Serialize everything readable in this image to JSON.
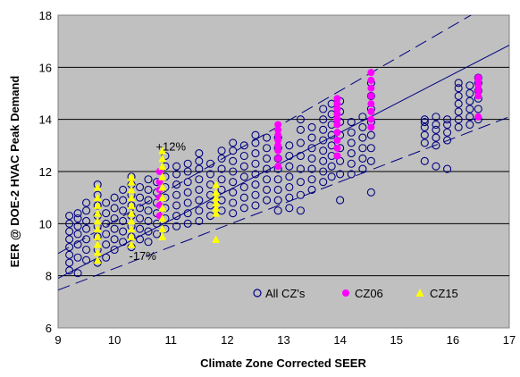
{
  "chart_data": {
    "type": "scatter",
    "title": "",
    "xlabel": "Climate Zone Corrected SEER",
    "ylabel": "EER @ DOE-2 HVAC Peak Demand",
    "xlim": [
      9,
      17
    ],
    "ylim": [
      6,
      18
    ],
    "xticks": [
      "9",
      "10",
      "11",
      "12",
      "13",
      "14",
      "15",
      "16",
      "17"
    ],
    "yticks": [
      "6",
      "8",
      "10",
      "12",
      "14",
      "16",
      "18"
    ],
    "grid": "horizontal",
    "plot_background": "#c0c0c0",
    "legend_position": "bottom-right-inside",
    "annotations": [
      {
        "text": "+12%",
        "x": 11.0,
        "y": 12.8
      },
      {
        "text": "-17%",
        "x": 10.5,
        "y": 8.6
      }
    ],
    "reference_lines": [
      {
        "name": "fit",
        "style": "solid",
        "color": "#000080",
        "x": [
          9,
          17
        ],
        "y": [
          7.9,
          16.85
        ]
      },
      {
        "name": "upper",
        "style": "dashed",
        "color": "#000080",
        "x": [
          9,
          17
        ],
        "y": [
          8.85,
          18.85
        ]
      },
      {
        "name": "lower",
        "style": "dashed",
        "color": "#000080",
        "x": [
          9,
          17
        ],
        "y": [
          7.45,
          14.1
        ]
      }
    ],
    "series": [
      {
        "name": "All CZ's",
        "marker": "open-circle",
        "color": "#000080",
        "x": [
          9.2,
          9.2,
          9.2,
          9.2,
          9.2,
          9.2,
          9.2,
          9.2,
          9.35,
          9.35,
          9.35,
          9.35,
          9.35,
          9.35,
          9.35,
          9.5,
          9.5,
          9.5,
          9.5,
          9.5,
          9.5,
          9.5,
          9.7,
          9.7,
          9.7,
          9.7,
          9.7,
          9.7,
          9.7,
          9.7,
          9.85,
          9.85,
          9.85,
          9.85,
          9.85,
          9.85,
          10.0,
          10.0,
          10.0,
          10.0,
          10.0,
          10.0,
          10.15,
          10.15,
          10.15,
          10.15,
          10.15,
          10.15,
          10.3,
          10.3,
          10.3,
          10.3,
          10.3,
          10.3,
          10.3,
          10.3,
          10.45,
          10.45,
          10.45,
          10.45,
          10.45,
          10.45,
          10.6,
          10.6,
          10.6,
          10.6,
          10.6,
          10.6,
          10.6,
          10.75,
          10.75,
          10.75,
          10.75,
          10.75,
          10.75,
          10.9,
          10.9,
          10.9,
          10.9,
          10.9,
          10.9,
          10.9,
          10.9,
          11.1,
          11.1,
          11.1,
          11.1,
          11.1,
          11.1,
          11.1,
          11.3,
          11.3,
          11.3,
          11.3,
          11.3,
          11.3,
          11.3,
          11.5,
          11.5,
          11.5,
          11.5,
          11.5,
          11.5,
          11.5,
          11.5,
          11.7,
          11.7,
          11.7,
          11.7,
          11.7,
          11.7,
          11.9,
          11.9,
          11.9,
          11.9,
          11.9,
          11.9,
          11.9,
          12.1,
          12.1,
          12.1,
          12.1,
          12.1,
          12.1,
          12.1,
          12.1,
          12.3,
          12.3,
          12.3,
          12.3,
          12.3,
          12.3,
          12.3,
          12.5,
          12.5,
          12.5,
          12.5,
          12.5,
          12.5,
          12.5,
          12.5,
          12.7,
          12.7,
          12.7,
          12.7,
          12.7,
          12.7,
          12.7,
          12.9,
          12.9,
          12.9,
          12.9,
          12.9,
          12.9,
          12.9,
          12.9,
          13.1,
          13.1,
          13.1,
          13.1,
          13.1,
          13.1,
          13.1,
          13.3,
          13.3,
          13.3,
          13.3,
          13.3,
          13.3,
          13.3,
          13.3,
          13.5,
          13.5,
          13.5,
          13.5,
          13.5,
          13.5,
          13.5,
          13.7,
          13.7,
          13.7,
          13.7,
          13.7,
          13.7,
          13.7,
          13.7,
          13.85,
          13.85,
          13.85,
          13.85,
          13.85,
          13.85,
          13.85,
          13.85,
          14.0,
          14.0,
          14.0,
          14.0,
          14.0,
          14.0,
          14.0,
          14.0,
          14.2,
          14.2,
          14.2,
          14.2,
          14.2,
          14.2,
          14.4,
          14.4,
          14.4,
          14.4,
          14.4,
          14.4,
          14.55,
          14.55,
          14.55,
          14.55,
          14.55,
          14.55,
          14.55,
          14.55,
          15.5,
          15.5,
          15.5,
          15.5,
          15.5,
          15.5,
          15.7,
          15.7,
          15.7,
          15.7,
          15.7,
          15.7,
          15.9,
          15.9,
          15.9,
          15.9,
          15.9,
          16.1,
          16.1,
          16.1,
          16.1,
          16.1,
          16.1,
          16.1,
          16.3,
          16.3,
          16.3,
          16.3,
          16.3,
          16.3,
          16.45,
          16.45,
          16.45,
          16.45,
          16.45,
          16.45
        ],
        "y": [
          8.2,
          8.5,
          8.8,
          9.1,
          9.4,
          9.7,
          10.0,
          10.3,
          8.1,
          8.7,
          9.2,
          9.6,
          9.9,
          10.2,
          10.4,
          8.6,
          9.0,
          9.4,
          9.8,
          10.1,
          10.5,
          10.8,
          8.5,
          9.0,
          9.5,
          9.9,
          10.3,
          10.7,
          11.1,
          11.5,
          8.7,
          9.2,
          9.6,
          10.0,
          10.4,
          10.8,
          9.0,
          9.4,
          9.8,
          10.2,
          10.6,
          11.0,
          9.3,
          9.7,
          10.1,
          10.5,
          10.9,
          11.3,
          9.1,
          9.5,
          9.9,
          10.3,
          10.7,
          11.1,
          11.5,
          11.8,
          9.4,
          9.8,
          10.2,
          10.6,
          11.0,
          11.4,
          9.3,
          9.7,
          10.1,
          10.5,
          10.9,
          11.3,
          11.7,
          9.6,
          10.0,
          10.4,
          10.8,
          11.2,
          11.6,
          9.8,
          10.2,
          10.6,
          11.0,
          11.4,
          11.8,
          12.2,
          12.6,
          9.9,
          10.3,
          10.7,
          11.1,
          11.5,
          11.9,
          12.2,
          10.0,
          10.4,
          10.8,
          11.2,
          11.6,
          12.0,
          12.3,
          10.1,
          10.5,
          10.9,
          11.3,
          11.7,
          12.1,
          12.4,
          12.7,
          10.3,
          10.7,
          11.1,
          11.5,
          11.9,
          12.3,
          10.5,
          10.9,
          11.3,
          11.7,
          12.1,
          12.5,
          12.8,
          10.4,
          10.8,
          11.2,
          11.6,
          12.0,
          12.4,
          12.8,
          13.1,
          10.6,
          11.0,
          11.4,
          11.8,
          12.2,
          12.6,
          13.0,
          10.7,
          11.1,
          11.5,
          11.9,
          12.3,
          12.7,
          13.1,
          13.4,
          10.9,
          11.3,
          11.7,
          12.1,
          12.5,
          12.9,
          13.3,
          10.5,
          10.9,
          11.3,
          11.7,
          12.1,
          12.5,
          12.9,
          13.3,
          10.6,
          11.0,
          11.4,
          11.8,
          12.2,
          12.6,
          13.0,
          10.5,
          11.1,
          11.6,
          12.1,
          12.6,
          13.1,
          13.6,
          14.0,
          11.3,
          11.7,
          12.1,
          12.5,
          12.9,
          13.3,
          13.7,
          11.6,
          12.0,
          12.4,
          12.8,
          13.2,
          13.6,
          14.0,
          14.4,
          11.8,
          12.2,
          12.6,
          13.0,
          13.4,
          13.8,
          14.2,
          14.6,
          10.9,
          11.9,
          12.4,
          12.9,
          13.4,
          13.9,
          14.3,
          14.7,
          11.9,
          12.3,
          12.7,
          13.1,
          13.5,
          13.9,
          12.1,
          12.5,
          12.9,
          13.3,
          13.7,
          14.1,
          11.2,
          12.4,
          12.9,
          13.4,
          13.9,
          14.4,
          14.9,
          15.4,
          12.4,
          13.1,
          13.4,
          13.7,
          13.9,
          14.0,
          12.2,
          13.0,
          13.3,
          13.6,
          13.8,
          14.1,
          12.1,
          13.2,
          13.5,
          13.8,
          14.0,
          13.7,
          14.0,
          14.3,
          14.6,
          14.9,
          15.2,
          15.4,
          13.8,
          14.1,
          14.4,
          14.7,
          15.0,
          15.3,
          14.0,
          14.4,
          14.8,
          15.1,
          15.4,
          15.6
        ]
      },
      {
        "name": "CZ06",
        "marker": "filled-circle",
        "color": "#ff00ff",
        "x": [
          10.8,
          10.8,
          10.8,
          10.8,
          10.8,
          10.8,
          12.9,
          12.9,
          12.9,
          12.9,
          12.9,
          12.9,
          12.9,
          12.9,
          13.95,
          13.95,
          13.95,
          13.95,
          13.95,
          13.95,
          13.95,
          13.95,
          13.95,
          13.95,
          14.55,
          14.55,
          14.55,
          14.55,
          14.55,
          14.55,
          14.55,
          14.55,
          16.45,
          16.45,
          16.45,
          16.45,
          16.45,
          16.45
        ],
        "y": [
          10.3,
          10.7,
          11.0,
          11.3,
          11.6,
          12.0,
          12.2,
          12.5,
          12.8,
          13.0,
          13.2,
          13.4,
          13.6,
          13.8,
          12.6,
          12.9,
          13.2,
          13.5,
          13.8,
          14.0,
          14.2,
          14.4,
          14.6,
          14.8,
          13.7,
          14.0,
          14.3,
          14.6,
          14.9,
          15.2,
          15.5,
          15.8,
          14.1,
          14.9,
          15.1,
          15.3,
          15.5,
          15.6
        ]
      },
      {
        "name": "CZ15",
        "marker": "filled-triangle",
        "color": "#ffff00",
        "x": [
          9.7,
          9.7,
          9.7,
          9.7,
          9.7,
          9.7,
          9.7,
          9.7,
          9.7,
          9.7,
          10.3,
          10.3,
          10.3,
          10.3,
          10.3,
          10.3,
          10.3,
          10.3,
          10.3,
          10.3,
          10.85,
          10.85,
          10.85,
          10.85,
          10.85,
          10.85,
          10.85,
          10.85,
          10.85,
          10.85,
          11.8,
          11.8,
          11.8,
          11.8,
          11.8,
          11.8,
          11.8
        ],
        "y": [
          8.6,
          8.9,
          9.2,
          9.5,
          9.8,
          10.1,
          10.4,
          10.7,
          11.0,
          11.4,
          9.2,
          9.5,
          9.8,
          10.1,
          10.4,
          10.7,
          11.0,
          11.3,
          11.6,
          11.8,
          9.5,
          9.8,
          10.2,
          10.6,
          11.0,
          11.4,
          11.8,
          12.2,
          12.5,
          12.8,
          9.4,
          10.4,
          10.6,
          10.8,
          11.0,
          11.2,
          11.5
        ]
      }
    ]
  }
}
